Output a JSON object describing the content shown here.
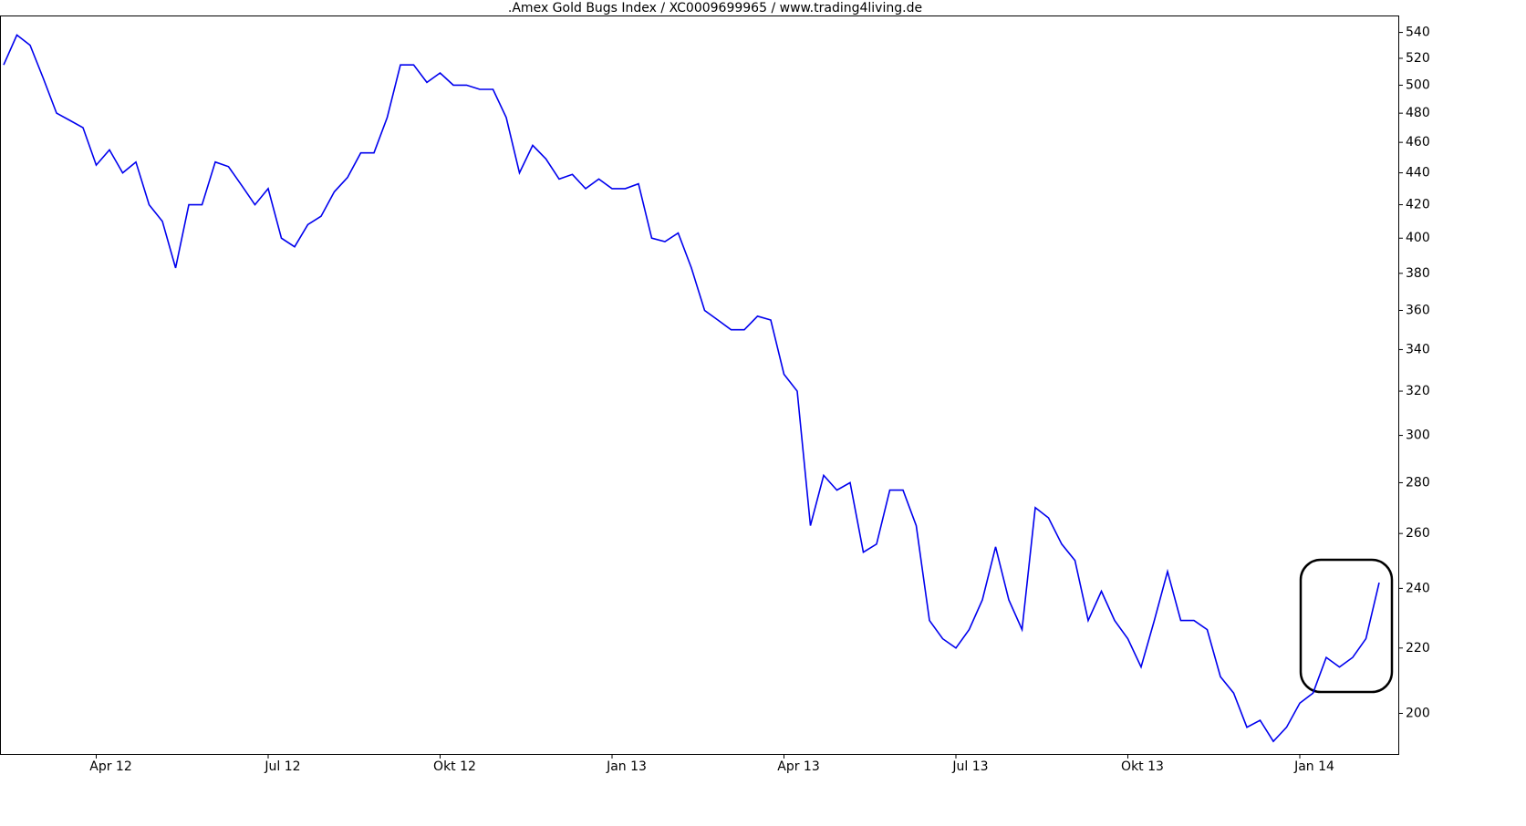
{
  "chart_data": {
    "type": "line",
    "title": ".Amex Gold Bugs Index / XC0009699965 / www.trading4living.de",
    "categories": [
      null,
      null,
      null,
      null,
      null,
      null,
      null,
      "Apr 12",
      null,
      null,
      null,
      null,
      null,
      null,
      null,
      null,
      null,
      null,
      null,
      null,
      "Jul 12",
      null,
      null,
      null,
      null,
      null,
      null,
      null,
      null,
      null,
      null,
      null,
      null,
      "Okt 12",
      null,
      null,
      null,
      null,
      null,
      null,
      null,
      null,
      null,
      null,
      null,
      null,
      "Jan 13",
      null,
      null,
      null,
      null,
      null,
      null,
      null,
      null,
      null,
      null,
      null,
      null,
      "Apr 13",
      null,
      null,
      null,
      null,
      null,
      null,
      null,
      null,
      null,
      null,
      null,
      null,
      "Jul 13",
      null,
      null,
      null,
      null,
      null,
      null,
      null,
      null,
      null,
      null,
      null,
      null,
      "Okt 13",
      null,
      null,
      null,
      null,
      null,
      null,
      null,
      null,
      null,
      null,
      null,
      null,
      "Jan 14",
      null,
      null,
      null,
      null,
      null,
      null
    ],
    "series": [
      {
        "color": "#0000ee",
        "values": [
          515,
          538,
          530,
          505,
          480,
          475,
          470,
          445,
          455,
          440,
          447,
          420,
          410,
          383,
          420,
          420,
          447,
          444,
          432,
          420,
          430,
          400,
          395,
          408,
          413,
          428,
          437,
          453,
          453,
          477,
          515,
          515,
          502,
          509,
          500,
          500,
          497,
          497,
          477,
          440,
          458,
          449,
          436,
          439,
          430,
          436,
          430,
          430,
          433,
          400,
          398,
          403,
          383,
          360,
          355,
          350,
          350,
          357,
          355,
          328,
          320,
          263,
          283,
          277,
          280,
          253,
          256,
          277,
          277,
          263,
          229,
          223,
          220,
          226,
          236,
          255,
          236,
          226,
          270,
          266,
          256,
          250,
          229,
          239,
          229,
          223,
          214,
          229,
          246,
          229,
          229,
          226,
          211,
          206,
          196,
          198,
          192,
          196,
          203,
          206,
          217,
          214,
          217,
          223,
          242
        ]
      }
    ],
    "ylim": [
      188.5,
      553.5
    ],
    "yticks": [
      200,
      220,
      240,
      260,
      280,
      300,
      320,
      340,
      360,
      380,
      400,
      420,
      440,
      460,
      480,
      500,
      520,
      540
    ],
    "log_scale": true,
    "grid": false
  }
}
